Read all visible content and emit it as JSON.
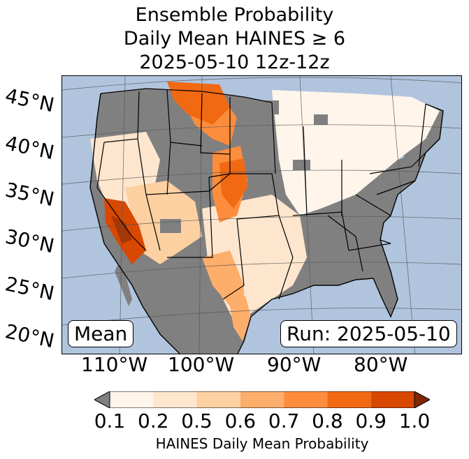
{
  "title": {
    "line1": "Ensemble Probability",
    "line2": "Daily Mean HAINES ≥ 6",
    "line3": "2025-05-10 12z-12z"
  },
  "map": {
    "lat_labels": [
      "45°N",
      "40°N",
      "35°N",
      "30°N",
      "25°N",
      "20°N"
    ],
    "lon_labels": [
      "110°W",
      "100°W",
      "90°W",
      "80°W"
    ],
    "colors": {
      "ocean": "#b0c4de",
      "no_data_gray": "#808080",
      "below_threshold_white": "#ffffff"
    }
  },
  "badges": {
    "mean": "Mean",
    "run": "Run: 2025-05-10"
  },
  "colorbar": {
    "ticks": [
      "0.1",
      "0.2",
      "0.5",
      "0.6",
      "0.7",
      "0.8",
      "0.9",
      "1.0"
    ],
    "colors": [
      "#fff5eb",
      "#fee6ce",
      "#fdd0a2",
      "#fdae6b",
      "#fd8d3c",
      "#f16913",
      "#d94801",
      "#a63603"
    ],
    "under_color": "#808080",
    "over_color": "#7f2704",
    "label": "HAINES Daily Mean Probability"
  }
}
